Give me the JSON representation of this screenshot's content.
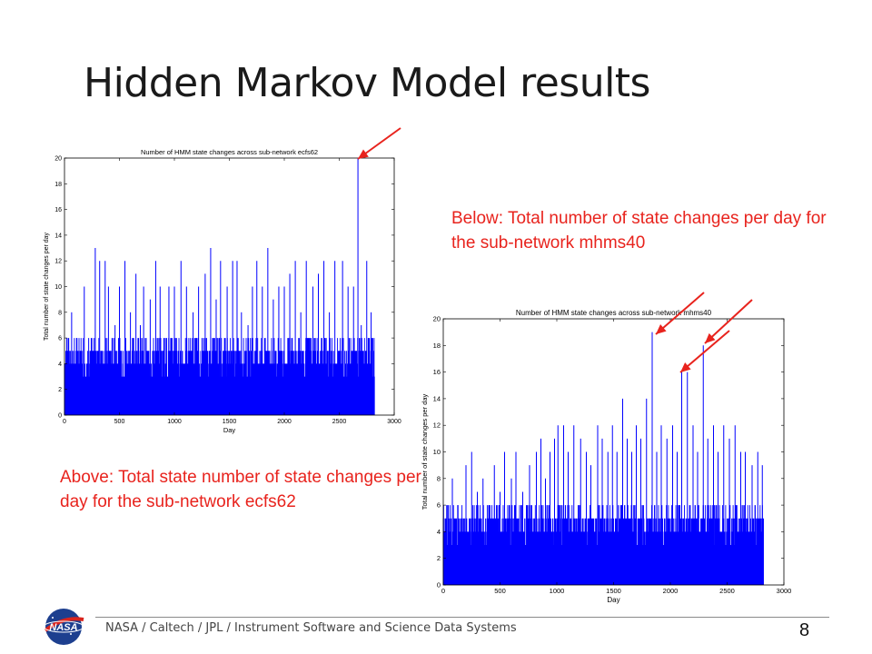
{
  "slide": {
    "title": "Hidden Markov Model results",
    "caption_right": "Below: Total number of state changes per day for the sub-network mhms40",
    "caption_left": "Above: Total state number of state changes per day for the sub-network ecfs62",
    "footer": "NASA / Caltech / JPL / Instrument Software and Science Data Systems",
    "page_number": "8",
    "logo_text": "NASA",
    "colors": {
      "accent": "#e8231d",
      "series": "#0000ff",
      "logo_blue": "#1d3f8f"
    }
  },
  "chart_data": [
    {
      "type": "bar",
      "title": "Number of HMM state changes across sub-network ecfs62",
      "xlabel": "Day",
      "ylabel": "Total number of state changes per day",
      "xlim": [
        0,
        3000
      ],
      "ylim": [
        0,
        20
      ],
      "xticks": [
        0,
        500,
        1000,
        1500,
        2000,
        2500,
        3000
      ],
      "yticks": [
        0,
        2,
        4,
        6,
        8,
        10,
        12,
        14,
        16,
        18,
        20
      ],
      "grid": false,
      "series": [
        {
          "x": [
            0,
            2820
          ],
          "values": [
            4,
            4
          ],
          "peaks": [
            [
              20,
              6
            ],
            [
              65,
              8
            ],
            [
              110,
              6
            ],
            [
              180,
              10
            ],
            [
              220,
              6
            ],
            [
              280,
              13
            ],
            [
              320,
              12
            ],
            [
              370,
              12
            ],
            [
              400,
              10
            ],
            [
              460,
              7
            ],
            [
              500,
              10
            ],
            [
              550,
              12
            ],
            [
              600,
              8
            ],
            [
              650,
              11
            ],
            [
              690,
              7
            ],
            [
              720,
              10
            ],
            [
              780,
              9
            ],
            [
              830,
              12
            ],
            [
              870,
              10
            ],
            [
              910,
              6
            ],
            [
              950,
              10
            ],
            [
              1000,
              10
            ],
            [
              1060,
              12
            ],
            [
              1110,
              10
            ],
            [
              1170,
              8
            ],
            [
              1220,
              10
            ],
            [
              1280,
              11
            ],
            [
              1330,
              13
            ],
            [
              1380,
              9
            ],
            [
              1420,
              12
            ],
            [
              1480,
              10
            ],
            [
              1530,
              12
            ],
            [
              1570,
              12
            ],
            [
              1610,
              8
            ],
            [
              1670,
              7
            ],
            [
              1710,
              10
            ],
            [
              1750,
              12
            ],
            [
              1800,
              10
            ],
            [
              1850,
              13
            ],
            [
              1900,
              9
            ],
            [
              1950,
              10
            ],
            [
              2000,
              10
            ],
            [
              2050,
              11
            ],
            [
              2100,
              12
            ],
            [
              2150,
              8
            ],
            [
              2200,
              12
            ],
            [
              2260,
              10
            ],
            [
              2310,
              11
            ],
            [
              2360,
              12
            ],
            [
              2410,
              8
            ],
            [
              2460,
              12
            ],
            [
              2530,
              12
            ],
            [
              2580,
              10
            ],
            [
              2630,
              10
            ],
            [
              2670,
              20
            ],
            [
              2700,
              7
            ],
            [
              2750,
              12
            ],
            [
              2790,
              8
            ]
          ]
        }
      ]
    },
    {
      "type": "bar",
      "title": "Number of HMM state changes across sub-network mhms40",
      "xlabel": "Day",
      "ylabel": "Total number of state changes per day",
      "xlim": [
        0,
        3000
      ],
      "ylim": [
        0,
        20
      ],
      "xticks": [
        0,
        500,
        1000,
        1500,
        2000,
        2500,
        3000
      ],
      "yticks": [
        0,
        2,
        4,
        6,
        8,
        10,
        12,
        14,
        16,
        18,
        20
      ],
      "grid": false,
      "series": [
        {
          "x": [
            0,
            2820
          ],
          "values": [
            4,
            4
          ],
          "peaks": [
            [
              30,
              6
            ],
            [
              80,
              8
            ],
            [
              130,
              6
            ],
            [
              200,
              9
            ],
            [
              250,
              10
            ],
            [
              300,
              7
            ],
            [
              350,
              8
            ],
            [
              400,
              6
            ],
            [
              450,
              9
            ],
            [
              500,
              7
            ],
            [
              540,
              10
            ],
            [
              600,
              8
            ],
            [
              640,
              10
            ],
            [
              700,
              7
            ],
            [
              760,
              9
            ],
            [
              820,
              10
            ],
            [
              860,
              11
            ],
            [
              900,
              8
            ],
            [
              940,
              10
            ],
            [
              980,
              11
            ],
            [
              1010,
              12
            ],
            [
              1060,
              12
            ],
            [
              1100,
              10
            ],
            [
              1150,
              12
            ],
            [
              1210,
              11
            ],
            [
              1260,
              10
            ],
            [
              1300,
              9
            ],
            [
              1360,
              12
            ],
            [
              1400,
              11
            ],
            [
              1450,
              10
            ],
            [
              1490,
              12
            ],
            [
              1530,
              10
            ],
            [
              1580,
              14
            ],
            [
              1620,
              11
            ],
            [
              1660,
              10
            ],
            [
              1700,
              12
            ],
            [
              1740,
              11
            ],
            [
              1790,
              14
            ],
            [
              1840,
              19
            ],
            [
              1880,
              10
            ],
            [
              1920,
              12
            ],
            [
              1970,
              11
            ],
            [
              2020,
              12
            ],
            [
              2060,
              10
            ],
            [
              2100,
              16
            ],
            [
              2150,
              16
            ],
            [
              2200,
              12
            ],
            [
              2240,
              10
            ],
            [
              2290,
              18
            ],
            [
              2330,
              11
            ],
            [
              2380,
              12
            ],
            [
              2420,
              10
            ],
            [
              2470,
              12
            ],
            [
              2520,
              11
            ],
            [
              2570,
              12
            ],
            [
              2620,
              10
            ],
            [
              2660,
              10
            ],
            [
              2720,
              9
            ],
            [
              2770,
              10
            ],
            [
              2810,
              9
            ]
          ]
        }
      ]
    }
  ]
}
